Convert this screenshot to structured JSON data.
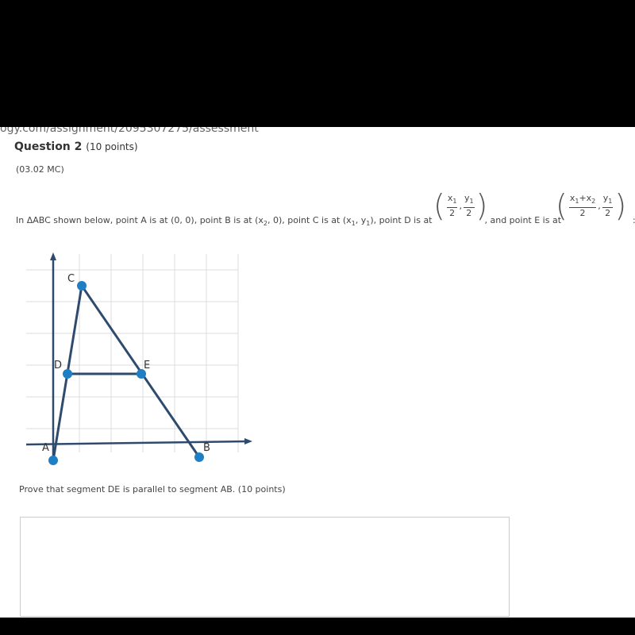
{
  "browser": {
    "url": "ogy.com/assignment/2095307275/assessment"
  },
  "question": {
    "title": "Question 2",
    "points": "(10 points)",
    "code": "(03.02 MC)",
    "stem": [
      "In ΔABC shown below, point A is at (0, 0), point B is at (x",
      "2",
      ", 0), point C is at (x",
      "1",
      ", y",
      "1",
      "), point D is at",
      ", and point E is at",
      ":"
    ],
    "d_coord": {
      "x_num": "x",
      "x_num_sub": "1",
      "x_den": "2",
      "sep": ",",
      "y_num": "y",
      "y_num_sub": "1",
      "y_den": "2"
    },
    "e_coord": {
      "x_num": "x",
      "x_num_sub": "1",
      "x_num_plus": "+x",
      "x_num_sub2": "2",
      "x_den": "2",
      "sep": ",",
      "y_num": "y",
      "y_num_sub": "1",
      "y_den": "2"
    },
    "graph_labels": {
      "a": "A",
      "b": "B",
      "c": "C",
      "d": "D",
      "e": "E"
    },
    "prompt": "Prove that segment DE is parallel to segment AB. (10 points)"
  }
}
